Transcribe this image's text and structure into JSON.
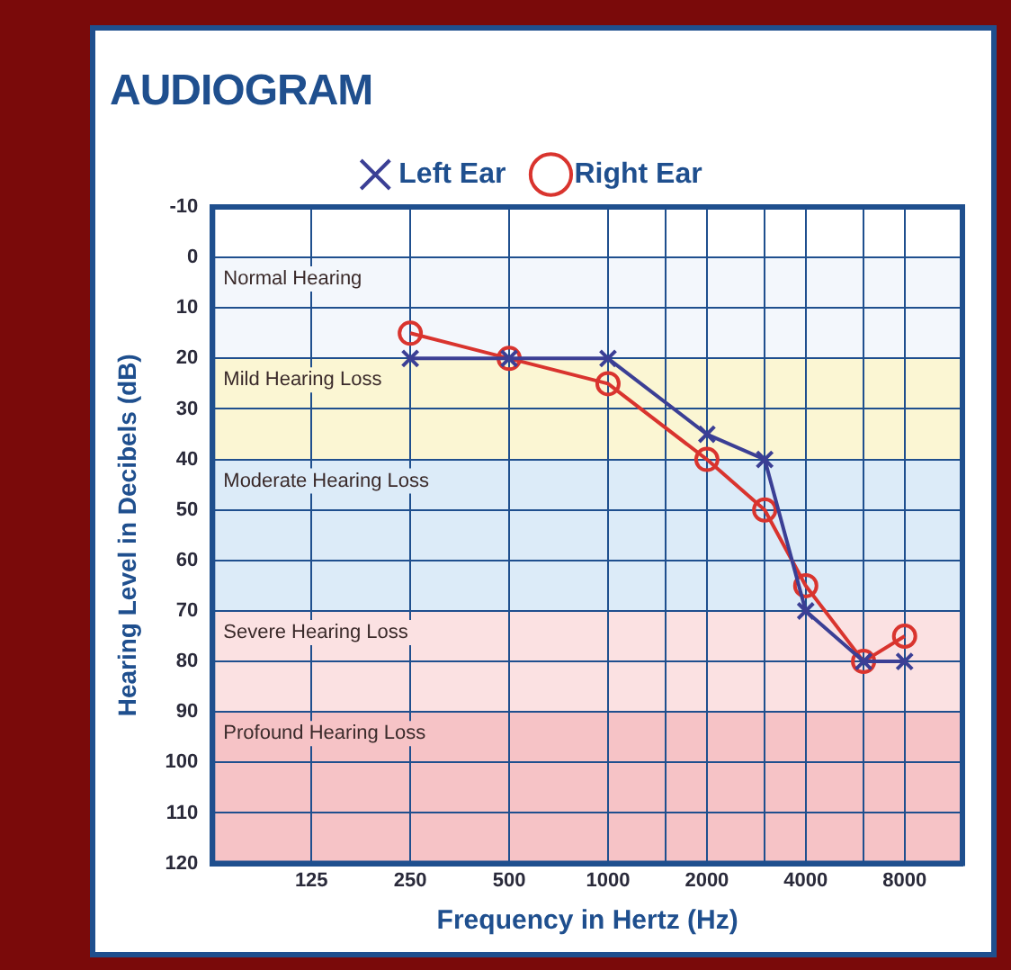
{
  "chart_data": {
    "type": "line",
    "title": "AUDIOGRAM",
    "xlabel": "Frequency in Hertz (Hz)",
    "ylabel": "Hearing Level in Decibels (dB)",
    "log": "x",
    "xlim": [
      62.5,
      12000
    ],
    "xticks": [
      125,
      250,
      500,
      1000,
      {
        "value": 1500,
        "label": null
      },
      2000,
      {
        "value": 3000,
        "label": null
      },
      4000,
      {
        "value": 6000,
        "label": null
      },
      8000
    ],
    "ylim": [
      120,
      -10
    ],
    "yticks": [
      -10,
      0,
      10,
      20,
      30,
      40,
      50,
      60,
      70,
      80,
      90,
      100,
      110,
      120
    ],
    "grid": true,
    "legend": "top",
    "line_style": "solid",
    "x": [
      250,
      500,
      1000,
      2000,
      3000,
      4000,
      6000,
      8000
    ],
    "series": [
      {
        "name": "Left Ear",
        "color": "#3b3f95",
        "marker": "cross",
        "values": [
          20,
          20,
          20,
          35,
          40,
          70,
          80,
          80
        ]
      },
      {
        "name": "Right Ear",
        "color": "#d9342e",
        "marker": "circle",
        "values": [
          15,
          20,
          25,
          40,
          50,
          65,
          80,
          75
        ]
      }
    ],
    "bands": [
      {
        "axis": "y",
        "from": 0,
        "to": 20,
        "label": "Normal Hearing",
        "color": "#f3f7fc"
      },
      {
        "axis": "y",
        "from": 20,
        "to": 40,
        "label": "Mild Hearing Loss",
        "color": "#fbf6d3"
      },
      {
        "axis": "y",
        "from": 40,
        "to": 70,
        "label": "Moderate Hearing Loss",
        "color": "#dcebf8"
      },
      {
        "axis": "y",
        "from": 70,
        "to": 90,
        "label": "Severe Hearing Loss",
        "color": "#fbe1e2"
      },
      {
        "axis": "y",
        "from": 90,
        "to": 120,
        "label": "Profound Hearing Loss",
        "color": "#f6c3c6"
      }
    ]
  }
}
